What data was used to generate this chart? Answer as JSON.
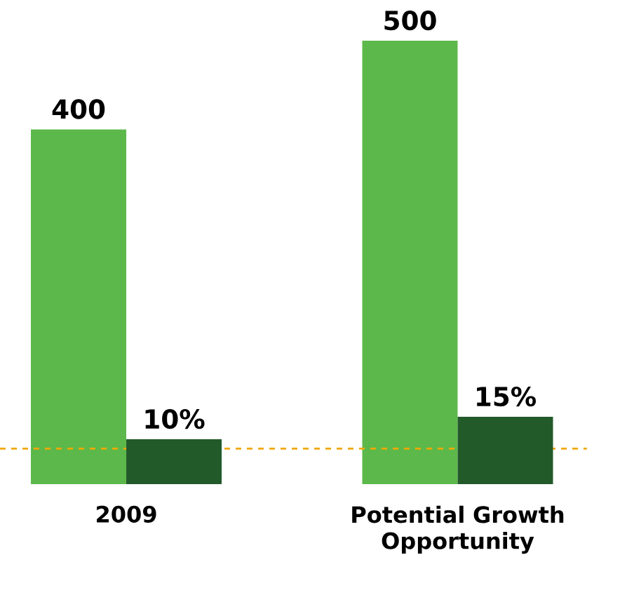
{
  "chart_data": {
    "type": "bar",
    "categories": [
      "2009",
      "Potential Growth Opportunity"
    ],
    "series": [
      {
        "color": "#5cb84a",
        "values": [
          400,
          500
        ],
        "value_labels": [
          "400",
          "500"
        ]
      },
      {
        "color": "#235a2a",
        "values": [
          10,
          15
        ],
        "value_labels": [
          "10%",
          "15%"
        ],
        "axis": "y2"
      }
    ],
    "ref_lines": [
      {
        "axis": "y",
        "value": 40,
        "color": "#f0a800",
        "line_style": "dashed"
      }
    ]
  }
}
